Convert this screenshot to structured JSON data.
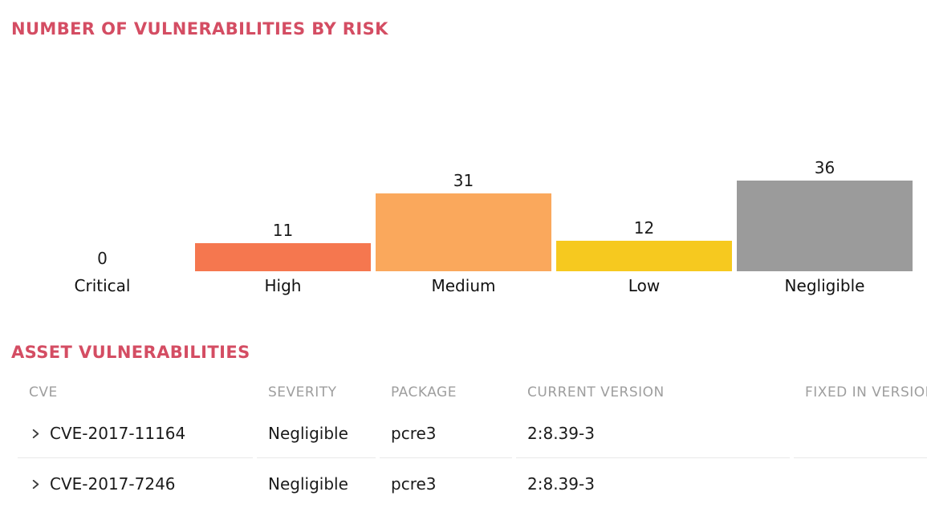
{
  "colors": {
    "accent_heading": "#d44d63",
    "bar_high": "#f5774f",
    "bar_medium": "#faa85c",
    "bar_low": "#f6c91f",
    "bar_negligible": "#9b9b9b",
    "muted_text": "#9e9e9e",
    "severity_text": "#a8a8a8",
    "row_divider": "#e8e8e8"
  },
  "risk_chart_section": {
    "title": "NUMBER OF VULNERABILITIES BY RISK"
  },
  "chart_data": {
    "type": "bar",
    "title": "NUMBER OF VULNERABILITIES BY RISK",
    "categories": [
      "Critical",
      "High",
      "Medium",
      "Low",
      "Negligible"
    ],
    "values": [
      0,
      11,
      31,
      12,
      36
    ],
    "bar_colors": [
      null,
      "#f5774f",
      "#faa85c",
      "#f6c91f",
      "#9b9b9b"
    ],
    "value_labels": true,
    "xlabel": "",
    "ylabel": "",
    "ylim": [
      0,
      45
    ],
    "grid": false,
    "axes_visible": false,
    "legend": "none"
  },
  "asset_table_section": {
    "title": "ASSET VULNERABILITIES",
    "columns": [
      "CVE",
      "SEVERITY",
      "PACKAGE",
      "CURRENT VERSION",
      "FIXED IN VERSION"
    ],
    "rows": [
      {
        "cve": "CVE-2017-11164",
        "severity": "Negligible",
        "package": "pcre3",
        "current_version": "2:8.39-3",
        "fixed_in_version": ""
      },
      {
        "cve": "CVE-2017-7246",
        "severity": "Negligible",
        "package": "pcre3",
        "current_version": "2:8.39-3",
        "fixed_in_version": ""
      }
    ]
  }
}
